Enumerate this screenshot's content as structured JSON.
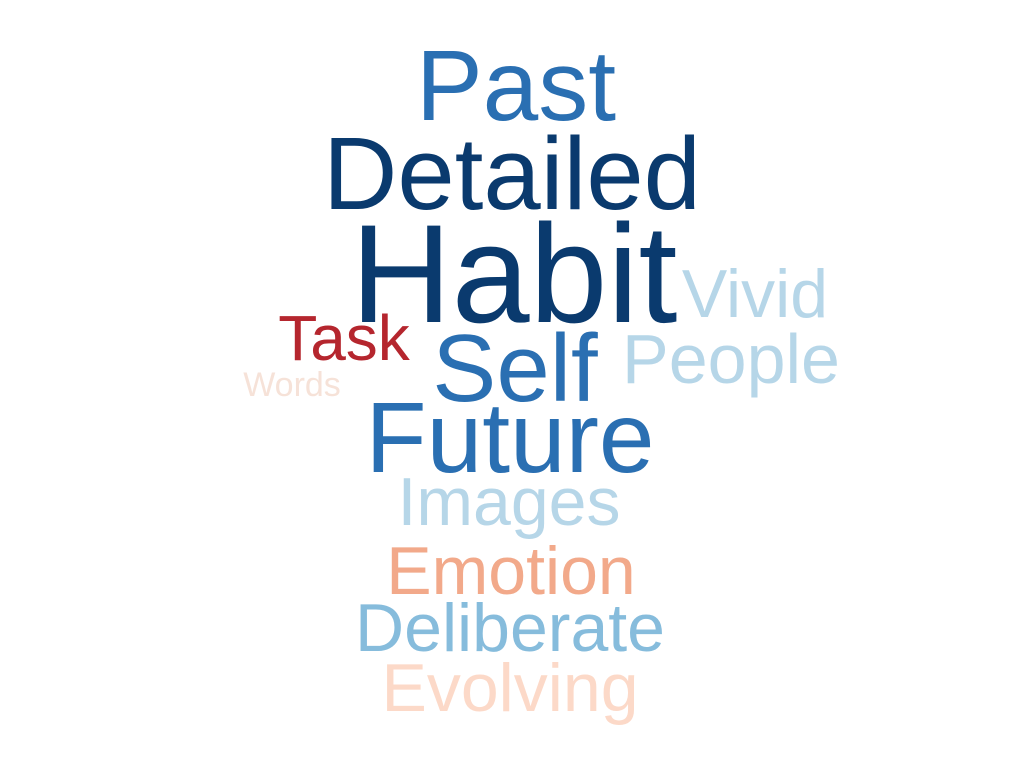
{
  "colors": {
    "background": "#ffffff",
    "navy": "#0a3a6e",
    "blue": "#2a6fb2",
    "mid_blue": "#86bcdc",
    "light_blue": "#b6d6e8",
    "red": "#b5262e",
    "salmon": "#f2a98a",
    "light_peach": "#fcd9c8",
    "pale_peach": "#f6e2d8"
  },
  "words": [
    {
      "text": "Past",
      "color": "#2a6fb2"
    },
    {
      "text": "Detailed",
      "color": "#0a3a6e"
    },
    {
      "text": "Habit",
      "color": "#0a3a6e"
    },
    {
      "text": "Vivid",
      "color": "#b6d6e8"
    },
    {
      "text": "Task",
      "color": "#b5262e"
    },
    {
      "text": "Self",
      "color": "#2a6fb2"
    },
    {
      "text": "People",
      "color": "#b6d6e8"
    },
    {
      "text": "Words",
      "color": "#f6e2d8"
    },
    {
      "text": "Future",
      "color": "#2a6fb2"
    },
    {
      "text": "Images",
      "color": "#b6d6e8"
    },
    {
      "text": "Emotion",
      "color": "#f2a98a"
    },
    {
      "text": "Deliberate",
      "color": "#86bcdc"
    },
    {
      "text": "Evolving",
      "color": "#fcd9c8"
    }
  ]
}
